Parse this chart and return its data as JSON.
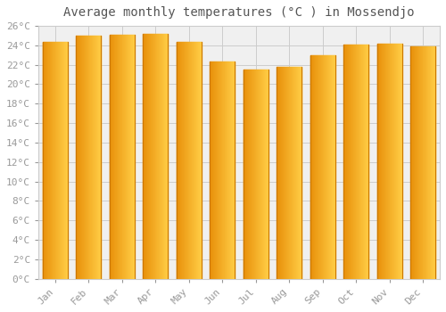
{
  "title": "Average monthly temperatures (°C ) in Mossendjo",
  "months": [
    "Jan",
    "Feb",
    "Mar",
    "Apr",
    "May",
    "Jun",
    "Jul",
    "Aug",
    "Sep",
    "Oct",
    "Nov",
    "Dec"
  ],
  "values": [
    24.4,
    25.0,
    25.1,
    25.2,
    24.4,
    22.3,
    21.5,
    21.8,
    23.0,
    24.1,
    24.2,
    23.9
  ],
  "bar_color_left": "#E8900A",
  "bar_color_right": "#FFCC44",
  "background_color": "#FFFFFF",
  "plot_bg_color": "#F0F0F0",
  "grid_color": "#CCCCCC",
  "text_color": "#999999",
  "title_color": "#555555",
  "ylim": [
    0,
    26
  ],
  "ytick_step": 2,
  "title_fontsize": 10,
  "tick_fontsize": 8
}
